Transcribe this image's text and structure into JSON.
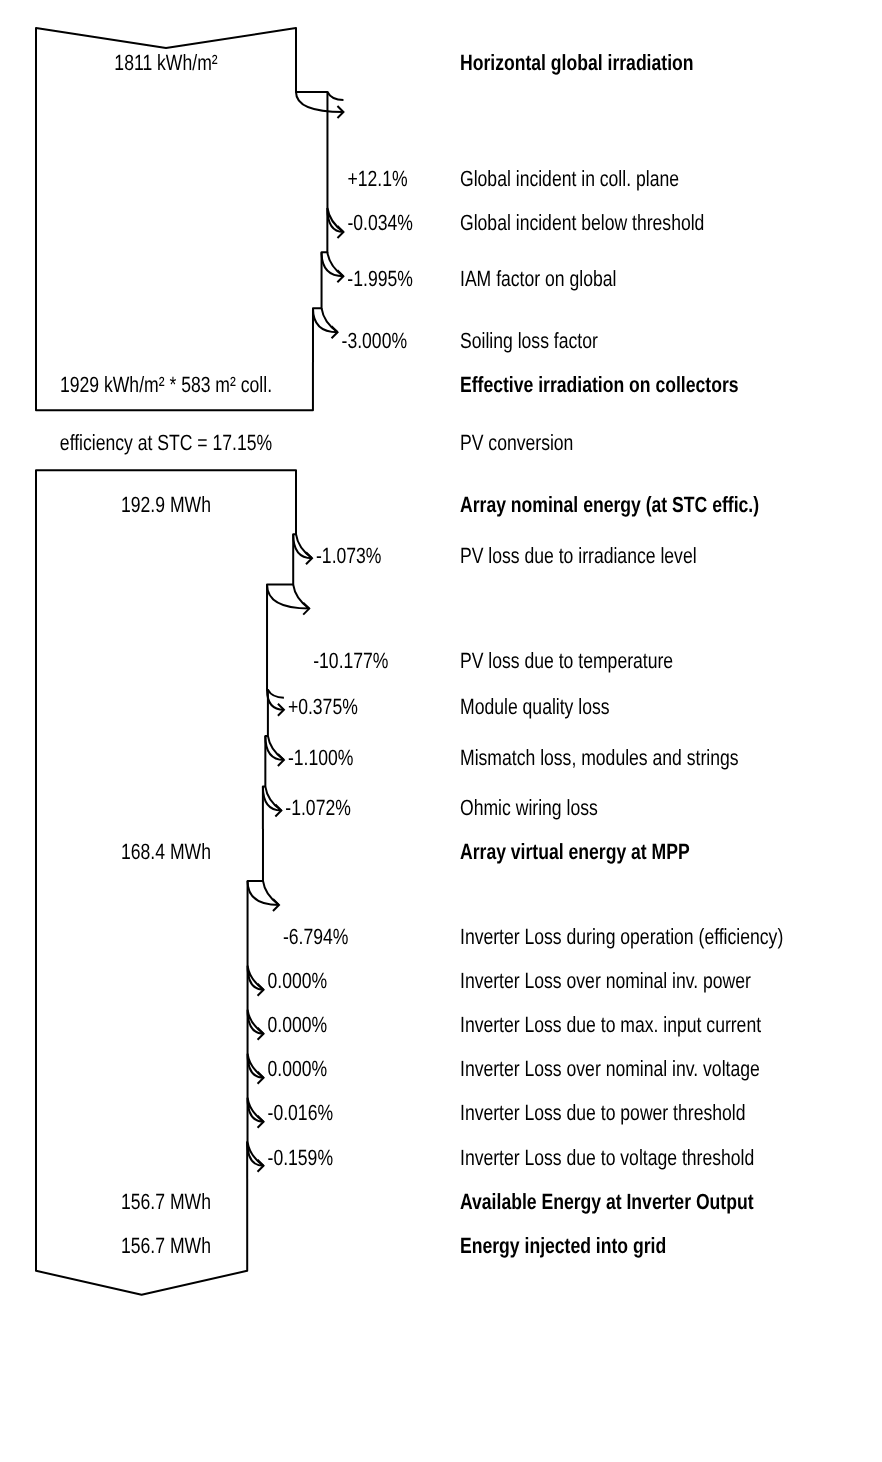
{
  "chart_data": {
    "type": "other",
    "categories": [
      "Horizontal global irradiation",
      "Global incident in coll. plane",
      "Global incident below threshold",
      "IAM factor on global",
      "Soiling loss factor",
      "Effective irradiation on collectors",
      "PV conversion",
      "Array nominal energy (at STC effic.)",
      "PV loss due to irradiance level",
      "PV loss due to temperature",
      "Module quality loss",
      "Mismatch loss, modules and strings",
      "Ohmic wiring loss",
      "Array virtual energy at MPP",
      "Inverter Loss during operation (efficiency)",
      "Inverter Loss over nominal inv. power",
      "Inverter Loss due to max. input current",
      "Inverter Loss over nominal inv. voltage",
      "Inverter Loss due to power threshold",
      "Inverter Loss due to voltage threshold",
      "Available Energy at Inverter Output",
      "Energy injected into grid"
    ],
    "series": [
      {
        "color": "#000000",
        "values": [
          1811,
          null,
          null,
          null,
          null,
          1929,
          null,
          192.9,
          null,
          null,
          null,
          null,
          null,
          168.4,
          null,
          null,
          null,
          null,
          null,
          null,
          156.7,
          156.7
        ],
        "value_labels": [
          "1811 kWh/m²",
          null,
          null,
          null,
          null,
          "1929 kWh/m² * 583 m² coll.",
          null,
          "192.9 MWh",
          null,
          null,
          null,
          null,
          null,
          "168.4 MWh",
          null,
          null,
          null,
          null,
          null,
          null,
          "156.7 MWh",
          "156.7 MWh"
        ]
      },
      {
        "color": "#000000",
        "values": [
          null,
          null,
          null,
          null,
          null,
          null,
          17.15,
          null,
          null,
          null,
          null,
          null,
          null,
          null,
          null,
          null,
          null,
          null,
          null,
          null,
          null,
          null
        ],
        "value_labels": [
          null,
          null,
          null,
          null,
          null,
          null,
          "efficiency at STC = 17.15%",
          null,
          null,
          null,
          null,
          null,
          null,
          null,
          null,
          null,
          null,
          null,
          null,
          null,
          null,
          null
        ]
      },
      {
        "color": "#000000",
        "values": [
          null,
          12.1,
          -0.034,
          -1.995,
          -3.0,
          null,
          null,
          null,
          -1.073,
          -10.177,
          0.375,
          -1.1,
          -1.072,
          null,
          -6.794,
          0.0,
          0.0,
          0.0,
          -0.016,
          -0.159,
          null,
          null
        ],
        "value_labels": [
          null,
          "+12.1%",
          "-0.034%",
          "-1.995%",
          "-3.000%",
          null,
          null,
          null,
          "-1.073%",
          "-10.177%",
          "+0.375%",
          "-1.100%",
          "-1.072%",
          null,
          "-6.794%",
          "0.000%",
          "0.000%",
          "0.000%",
          "-0.016%",
          "-0.159%",
          null,
          null
        ]
      }
    ]
  }
}
